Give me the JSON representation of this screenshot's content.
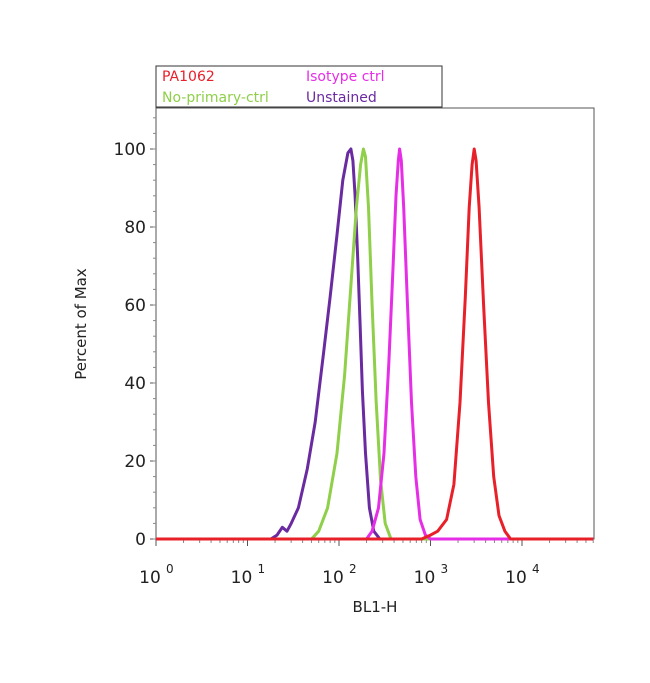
{
  "chart_data": {
    "type": "line",
    "title": "",
    "xlabel": "BL1-H",
    "ylabel": "Percent of Max",
    "x_scale": "log",
    "xlim": [
      1,
      60000
    ],
    "ylim": [
      0,
      110
    ],
    "y_ticks": [
      0,
      20,
      40,
      60,
      80,
      100
    ],
    "x_ticks": [
      {
        "value": 1,
        "base": "10",
        "exp": "0"
      },
      {
        "value": 10,
        "base": "10",
        "exp": "1"
      },
      {
        "value": 100,
        "base": "10",
        "exp": "2"
      },
      {
        "value": 1000,
        "base": "10",
        "exp": "3"
      },
      {
        "value": 10000,
        "base": "10",
        "exp": "4"
      }
    ],
    "grid": false,
    "legend_position": "top-left, above plot",
    "legend": [
      {
        "label": "PA1062",
        "color": "#e8202a"
      },
      {
        "label": "Isotype ctrl",
        "color": "#e62ee6"
      },
      {
        "label": "No-primary-ctrl",
        "color": "#8fcf4a"
      },
      {
        "label": "Unstained",
        "color": "#6a2aa0"
      }
    ],
    "series": [
      {
        "name": "Unstained",
        "color": "#6a2aa0",
        "points": [
          [
            1,
            0
          ],
          [
            18,
            0
          ],
          [
            21,
            1
          ],
          [
            24,
            3
          ],
          [
            27,
            2
          ],
          [
            30,
            4
          ],
          [
            36,
            8
          ],
          [
            45,
            18
          ],
          [
            55,
            30
          ],
          [
            68,
            48
          ],
          [
            80,
            62
          ],
          [
            95,
            78
          ],
          [
            110,
            92
          ],
          [
            125,
            99
          ],
          [
            135,
            100
          ],
          [
            142,
            97
          ],
          [
            150,
            88
          ],
          [
            160,
            72
          ],
          [
            170,
            55
          ],
          [
            180,
            38
          ],
          [
            195,
            22
          ],
          [
            215,
            8
          ],
          [
            240,
            2
          ],
          [
            280,
            0
          ],
          [
            60000,
            0
          ]
        ]
      },
      {
        "name": "No-primary-ctrl",
        "color": "#8fcf4a",
        "points": [
          [
            1,
            0
          ],
          [
            50,
            0
          ],
          [
            60,
            2
          ],
          [
            75,
            8
          ],
          [
            95,
            22
          ],
          [
            115,
            42
          ],
          [
            135,
            65
          ],
          [
            155,
            85
          ],
          [
            172,
            96
          ],
          [
            185,
            100
          ],
          [
            195,
            98
          ],
          [
            210,
            85
          ],
          [
            230,
            60
          ],
          [
            255,
            35
          ],
          [
            285,
            15
          ],
          [
            320,
            4
          ],
          [
            370,
            0
          ],
          [
            60000,
            0
          ]
        ]
      },
      {
        "name": "Isotype ctrl",
        "color": "#e62ee6",
        "points": [
          [
            1,
            0
          ],
          [
            200,
            0
          ],
          [
            230,
            2
          ],
          [
            270,
            8
          ],
          [
            310,
            22
          ],
          [
            350,
            45
          ],
          [
            390,
            70
          ],
          [
            420,
            88
          ],
          [
            445,
            97
          ],
          [
            460,
            100
          ],
          [
            480,
            97
          ],
          [
            510,
            85
          ],
          [
            560,
            60
          ],
          [
            620,
            35
          ],
          [
            690,
            16
          ],
          [
            770,
            5
          ],
          [
            880,
            1
          ],
          [
            1000,
            0
          ],
          [
            60000,
            0
          ]
        ]
      },
      {
        "name": "PA1062",
        "color": "#e8202a",
        "points": [
          [
            1,
            0
          ],
          [
            800,
            0
          ],
          [
            1000,
            1
          ],
          [
            1200,
            2
          ],
          [
            1500,
            5
          ],
          [
            1800,
            14
          ],
          [
            2100,
            35
          ],
          [
            2400,
            62
          ],
          [
            2650,
            85
          ],
          [
            2850,
            96
          ],
          [
            3000,
            100
          ],
          [
            3150,
            97
          ],
          [
            3400,
            85
          ],
          [
            3800,
            60
          ],
          [
            4300,
            35
          ],
          [
            4900,
            16
          ],
          [
            5600,
            6
          ],
          [
            6500,
            2
          ],
          [
            7500,
            0
          ],
          [
            60000,
            0
          ]
        ]
      }
    ]
  }
}
